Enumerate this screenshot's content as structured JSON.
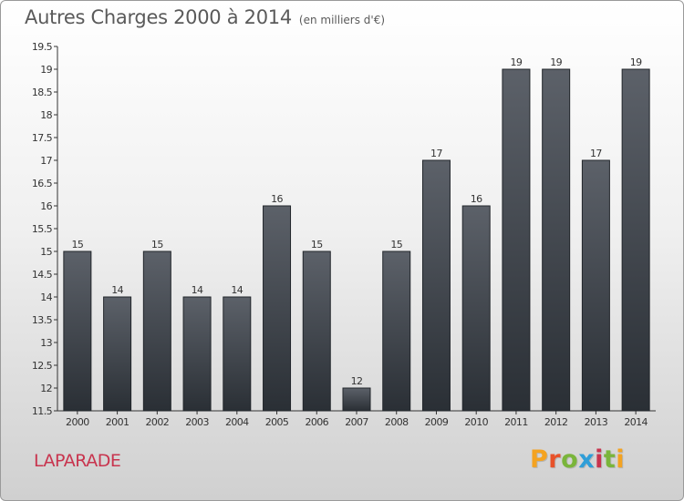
{
  "header": {
    "title": "Autres Charges 2000 à 2014",
    "subtitle": "(en milliers d'€)"
  },
  "footer": {
    "commune": "LAPARADE",
    "brand": "Proxiti",
    "brand_colors": [
      "#f4a321",
      "#e8522a",
      "#7ab53b",
      "#2f9ed8",
      "#c8344e",
      "#7ab53b",
      "#f4a321"
    ]
  },
  "chart_data": {
    "type": "bar",
    "title": "Autres Charges 2000 à 2014",
    "subtitle": "(en milliers d'€)",
    "xlabel": "",
    "ylabel": "",
    "categories": [
      "2000",
      "2001",
      "2002",
      "2003",
      "2004",
      "2005",
      "2006",
      "2007",
      "2008",
      "2009",
      "2010",
      "2011",
      "2012",
      "2013",
      "2014"
    ],
    "values": [
      15,
      14,
      15,
      14,
      14,
      16,
      15,
      12,
      15,
      17,
      16,
      19,
      19,
      17,
      19
    ],
    "ylim": [
      11.5,
      19.5
    ],
    "yticks": [
      11.5,
      12,
      12.5,
      13,
      13.5,
      14,
      14.5,
      15,
      15.5,
      16,
      16.5,
      17,
      17.5,
      18,
      18.5,
      19,
      19.5
    ],
    "ytick_labels": [
      "11.5",
      "12",
      "12.5",
      "13",
      "13.5",
      "14",
      "14.5",
      "15",
      "15.5",
      "16",
      "16.5",
      "17",
      "17.5",
      "18",
      "18.5",
      "19",
      "19.5"
    ],
    "data_labels": [
      "15",
      "14",
      "15",
      "14",
      "14",
      "16",
      "15",
      "12",
      "15",
      "17",
      "16",
      "19",
      "19",
      "17",
      "19"
    ],
    "bar_color_top": "#5c6169",
    "bar_color_bottom": "#2a2f35",
    "grid": false,
    "legend": "none"
  }
}
